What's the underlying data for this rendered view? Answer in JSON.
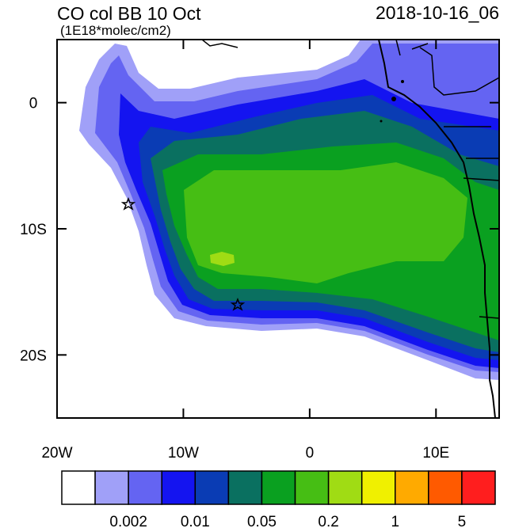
{
  "chart_data": {
    "type": "map",
    "title": "CO col BB 10 Oct",
    "subtitle": "(1E18*molec/cm2)",
    "date": "2018-10-16_06",
    "xlim": [
      -20,
      15
    ],
    "ylim": [
      -25,
      5
    ],
    "xticks": [
      {
        "value": -20,
        "label": "20W"
      },
      {
        "value": -10,
        "label": "10W"
      },
      0,
      {
        "value": 10,
        "label": "10E"
      }
    ],
    "yticks": [
      0,
      {
        "value": -10,
        "label": "10S"
      },
      {
        "value": -20,
        "label": "20S"
      }
    ],
    "colorbar": {
      "colors": [
        "#ffffff",
        "#a0a0f8",
        "#6464f2",
        "#1414f0",
        "#0a3cb4",
        "#0a7060",
        "#0aa020",
        "#46be14",
        "#a0dc14",
        "#f0f000",
        "#ffaa00",
        "#ff5a00",
        "#ff1e1e"
      ],
      "ticks": [
        0.002,
        0.01,
        0.05,
        0.2,
        1,
        5
      ]
    }
  }
}
